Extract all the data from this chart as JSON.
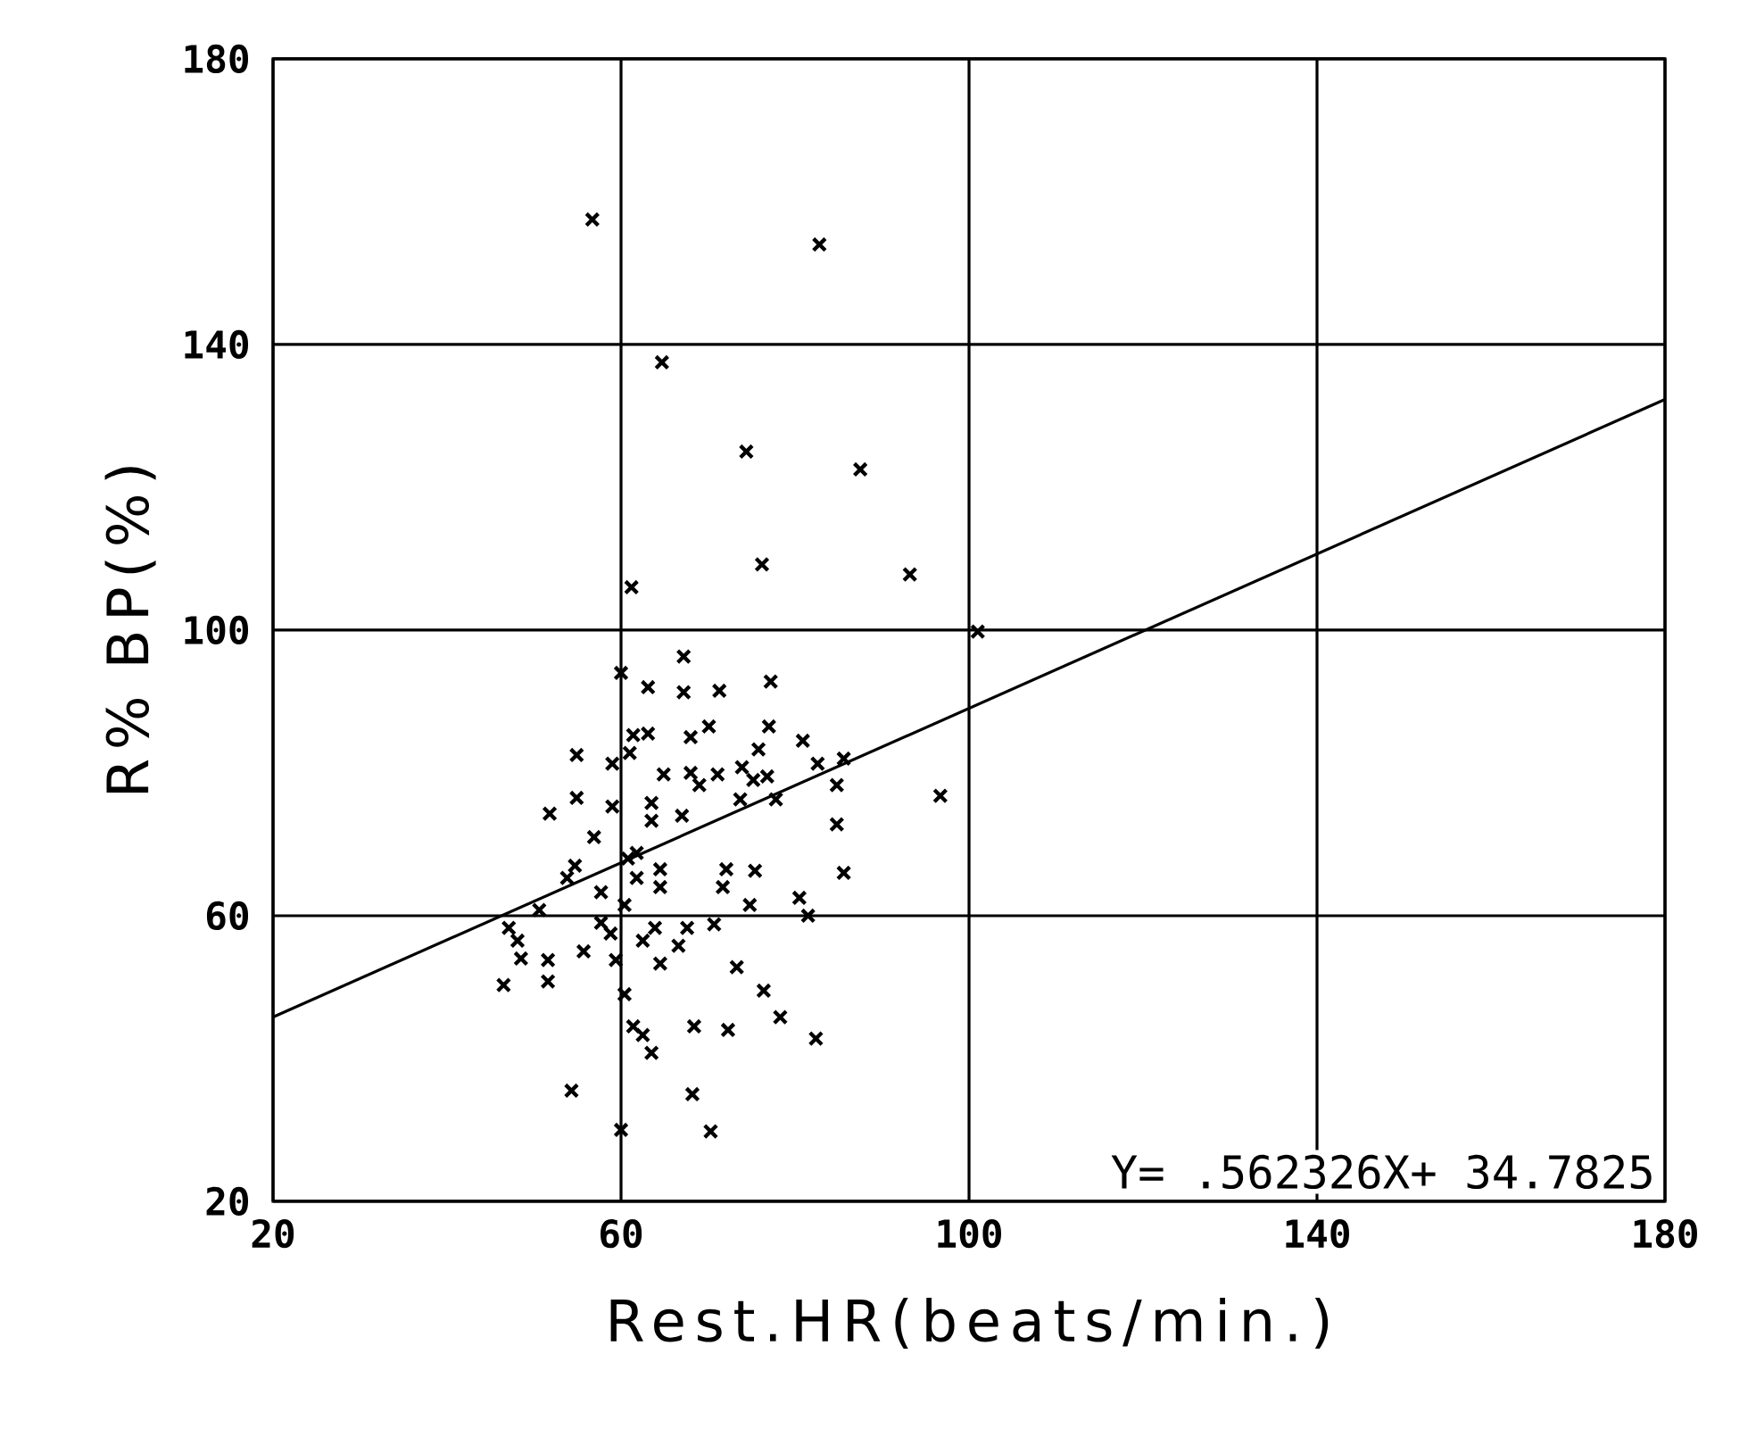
{
  "chart_data": {
    "type": "scatter",
    "xlabel": "Rest.HR(beats/min.)",
    "ylabel": "R% BP(%)",
    "xlim": [
      20,
      180
    ],
    "ylim": [
      20,
      180
    ],
    "xticks": [
      20,
      60,
      100,
      140,
      180
    ],
    "yticks": [
      20,
      60,
      100,
      140,
      180
    ],
    "grid": true,
    "marker": "cross",
    "annotations": [
      "Y= .562326X+ 34.7825"
    ],
    "series": [
      {
        "type": "scatter",
        "color": "#000000",
        "x": [
          67.2,
          60.0,
          63.1,
          67.2,
          71.3,
          77.2,
          63.1,
          68.0,
          70.1,
          77.0,
          80.9,
          61.4,
          61.0,
          75.8,
          54.9,
          59.0,
          64.9,
          68.0,
          71.1,
          69.0,
          73.9,
          75.2,
          76.8,
          82.6,
          85.6,
          84.8,
          54.9,
          59.0,
          51.8,
          63.5,
          63.5,
          67.0,
          73.7,
          77.8,
          84.8,
          96.7,
          56.9,
          61.8,
          54.7,
          64.5,
          72.1,
          75.4,
          85.6,
          64.5,
          71.7,
          74.8,
          80.5,
          81.5,
          53.8,
          57.7,
          60.4,
          50.6,
          47.1,
          48.1,
          48.5,
          46.5,
          51.6,
          51.6,
          55.7,
          57.7,
          58.8,
          59.4,
          60.4,
          62.5,
          63.9,
          64.5,
          66.6,
          67.6,
          70.7,
          73.3,
          76.4,
          78.3,
          82.4,
          72.3,
          68.4,
          61.4,
          62.5,
          63.5,
          54.3,
          68.2,
          60.0,
          70.3,
          61.8,
          60.8,
          56.7,
          82.8,
          64.7,
          74.4,
          87.5,
          76.2,
          93.2,
          61.2,
          101.0
        ],
        "values": [
          96.3,
          94.0,
          92.0,
          91.3,
          91.5,
          92.8,
          85.5,
          85.0,
          86.5,
          86.5,
          84.5,
          85.3,
          82.8,
          83.3,
          82.5,
          81.3,
          79.8,
          80.0,
          79.8,
          78.3,
          80.8,
          79.0,
          79.5,
          81.3,
          82.0,
          78.3,
          76.5,
          75.3,
          74.3,
          75.8,
          73.3,
          74.0,
          76.3,
          76.3,
          72.8,
          76.8,
          71.0,
          68.8,
          67.0,
          66.5,
          66.5,
          66.3,
          66.0,
          64.0,
          64.0,
          61.5,
          62.5,
          60.0,
          65.3,
          63.3,
          61.5,
          60.8,
          58.3,
          56.5,
          54.0,
          50.3,
          53.8,
          50.8,
          55.0,
          59.0,
          57.5,
          53.8,
          49.0,
          56.5,
          58.3,
          53.3,
          55.8,
          58.3,
          58.8,
          52.8,
          49.5,
          45.8,
          42.8,
          44.0,
          44.5,
          44.5,
          43.3,
          40.8,
          35.5,
          35.0,
          30.0,
          29.8,
          65.3,
          68.0,
          157.5,
          154.0,
          137.5,
          125.0,
          122.5,
          109.2,
          107.8,
          106.0,
          99.8
        ]
      },
      {
        "type": "line",
        "color": "#000000",
        "marker": "none",
        "x": [
          20,
          180
        ],
        "values": [
          45.8,
          132.3
        ]
      }
    ]
  }
}
